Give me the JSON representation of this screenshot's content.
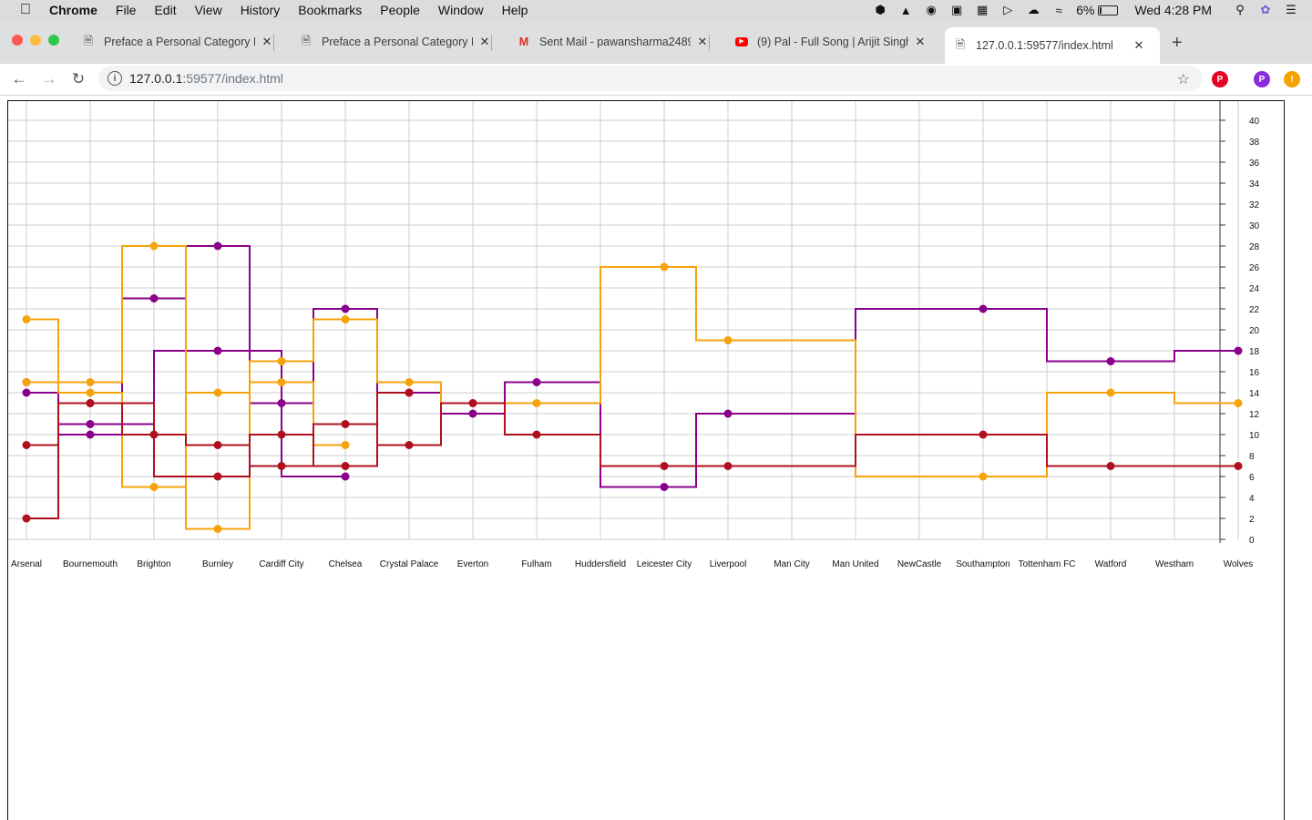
{
  "menubar": {
    "app": "Chrome",
    "items": [
      "File",
      "Edit",
      "View",
      "History",
      "Bookmarks",
      "People",
      "Window",
      "Help"
    ],
    "battery": "6%",
    "clock": "Wed 4:28 PM"
  },
  "tabs": [
    {
      "title": "Preface a Personal Category Fl",
      "icon": "document-icon"
    },
    {
      "title": "Preface a Personal Category Fl",
      "icon": "document-icon"
    },
    {
      "title": "Sent Mail - pawansharma2489",
      "icon": "gmail-icon"
    },
    {
      "title": "(9) Pal - Full Song | Arijit Singh",
      "icon": "youtube-icon"
    },
    {
      "title": "127.0.0.1:59577/index.html",
      "icon": "document-icon",
      "active": true
    }
  ],
  "address": {
    "host": "127.0.0.1",
    "rest": ":59577/index.html"
  },
  "profile_initial": "P",
  "colors": {
    "purple": "#8a008a",
    "orange": "#f5a30a",
    "red": "#b0101e",
    "grid": "#cccccc"
  },
  "chart_data": {
    "type": "line",
    "interpolation": "step",
    "categories": [
      "Arsenal",
      "Bournemouth",
      "Brighton",
      "Burnley",
      "Cardiff City",
      "Chelsea",
      "Crystal Palace",
      "Everton",
      "Fulham",
      "Huddersfield",
      "Leicester City",
      "Liverpool",
      "Man City",
      "Man United",
      "NewCastle",
      "Southampton",
      "Tottenham FC",
      "Watford",
      "Westham",
      "Wolves"
    ],
    "ylim": [
      0,
      40
    ],
    "yticks": [
      0,
      2,
      4,
      6,
      8,
      10,
      12,
      14,
      16,
      18,
      20,
      22,
      24,
      26,
      28,
      30,
      32,
      34,
      36,
      38,
      40
    ],
    "grid": true,
    "series": [
      {
        "color": "purple",
        "points": [
          [
            "Arsenal",
            14
          ],
          [
            "Bournemouth",
            10
          ],
          [
            "Brighton",
            23
          ],
          [
            "Burnley",
            28
          ],
          [
            "Cardiff City",
            13
          ],
          [
            "Chelsea",
            22
          ],
          [
            "Crystal Palace",
            14
          ],
          [
            "Everton",
            12
          ],
          [
            "Fulham",
            15
          ],
          [
            "Leicester City",
            5
          ],
          [
            "Liverpool",
            12
          ],
          [
            "Southampton",
            22
          ],
          [
            "Watford",
            17
          ],
          [
            "Wolves",
            18
          ]
        ]
      },
      {
        "color": "purple",
        "points": [
          [
            "Arsenal",
            15
          ],
          [
            "Bournemouth",
            11
          ],
          [
            "Burnley",
            18
          ],
          [
            "Chelsea",
            6
          ]
        ]
      },
      {
        "color": "orange",
        "points": [
          [
            "Arsenal",
            21
          ],
          [
            "Bournemouth",
            15
          ],
          [
            "Brighton",
            28
          ],
          [
            "Burnley",
            1
          ],
          [
            "Cardiff City",
            17
          ],
          [
            "Chelsea",
            21
          ],
          [
            "Crystal Palace",
            15
          ],
          [
            "Everton",
            13
          ],
          [
            "Fulham",
            13
          ],
          [
            "Leicester City",
            26
          ],
          [
            "Liverpool",
            19
          ],
          [
            "Southampton",
            6
          ],
          [
            "Watford",
            14
          ],
          [
            "Wolves",
            13
          ]
        ]
      },
      {
        "color": "orange",
        "points": [
          [
            "Arsenal",
            15
          ],
          [
            "Bournemouth",
            14
          ],
          [
            "Brighton",
            5
          ],
          [
            "Burnley",
            14
          ],
          [
            "Cardiff City",
            15
          ],
          [
            "Chelsea",
            9
          ]
        ]
      },
      {
        "color": "red",
        "points": [
          [
            "Arsenal",
            9
          ],
          [
            "Bournemouth",
            13
          ],
          [
            "Brighton",
            10
          ],
          [
            "Burnley",
            9
          ],
          [
            "Cardiff City",
            7
          ],
          [
            "Chelsea",
            11
          ],
          [
            "Crystal Palace",
            9
          ],
          [
            "Everton",
            13
          ],
          [
            "Fulham",
            10
          ],
          [
            "Leicester City",
            7
          ],
          [
            "Liverpool",
            7
          ],
          [
            "Southampton",
            10
          ],
          [
            "Watford",
            7
          ],
          [
            "Wolves",
            7
          ]
        ]
      },
      {
        "color": "red",
        "points": [
          [
            "Arsenal",
            2
          ],
          [
            "Bournemouth",
            13
          ],
          [
            "Burnley",
            6
          ],
          [
            "Cardiff City",
            10
          ],
          [
            "Chelsea",
            7
          ],
          [
            "Crystal Palace",
            14
          ]
        ]
      }
    ]
  }
}
